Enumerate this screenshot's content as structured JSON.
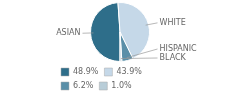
{
  "chart_data": {
    "type": "pie",
    "categories": [
      "ASIAN",
      "WHITE",
      "HISPANIC",
      "BLACK"
    ],
    "values": [
      48.9,
      43.9,
      6.2,
      1.0
    ],
    "value_labels": [
      "48.9%",
      "43.9%",
      "6.2%",
      "1.0%"
    ],
    "colors": [
      "#2e6e8a",
      "#c5d8e8",
      "#5a8fa8",
      "#b8cdd8"
    ],
    "legend": "bottom"
  }
}
